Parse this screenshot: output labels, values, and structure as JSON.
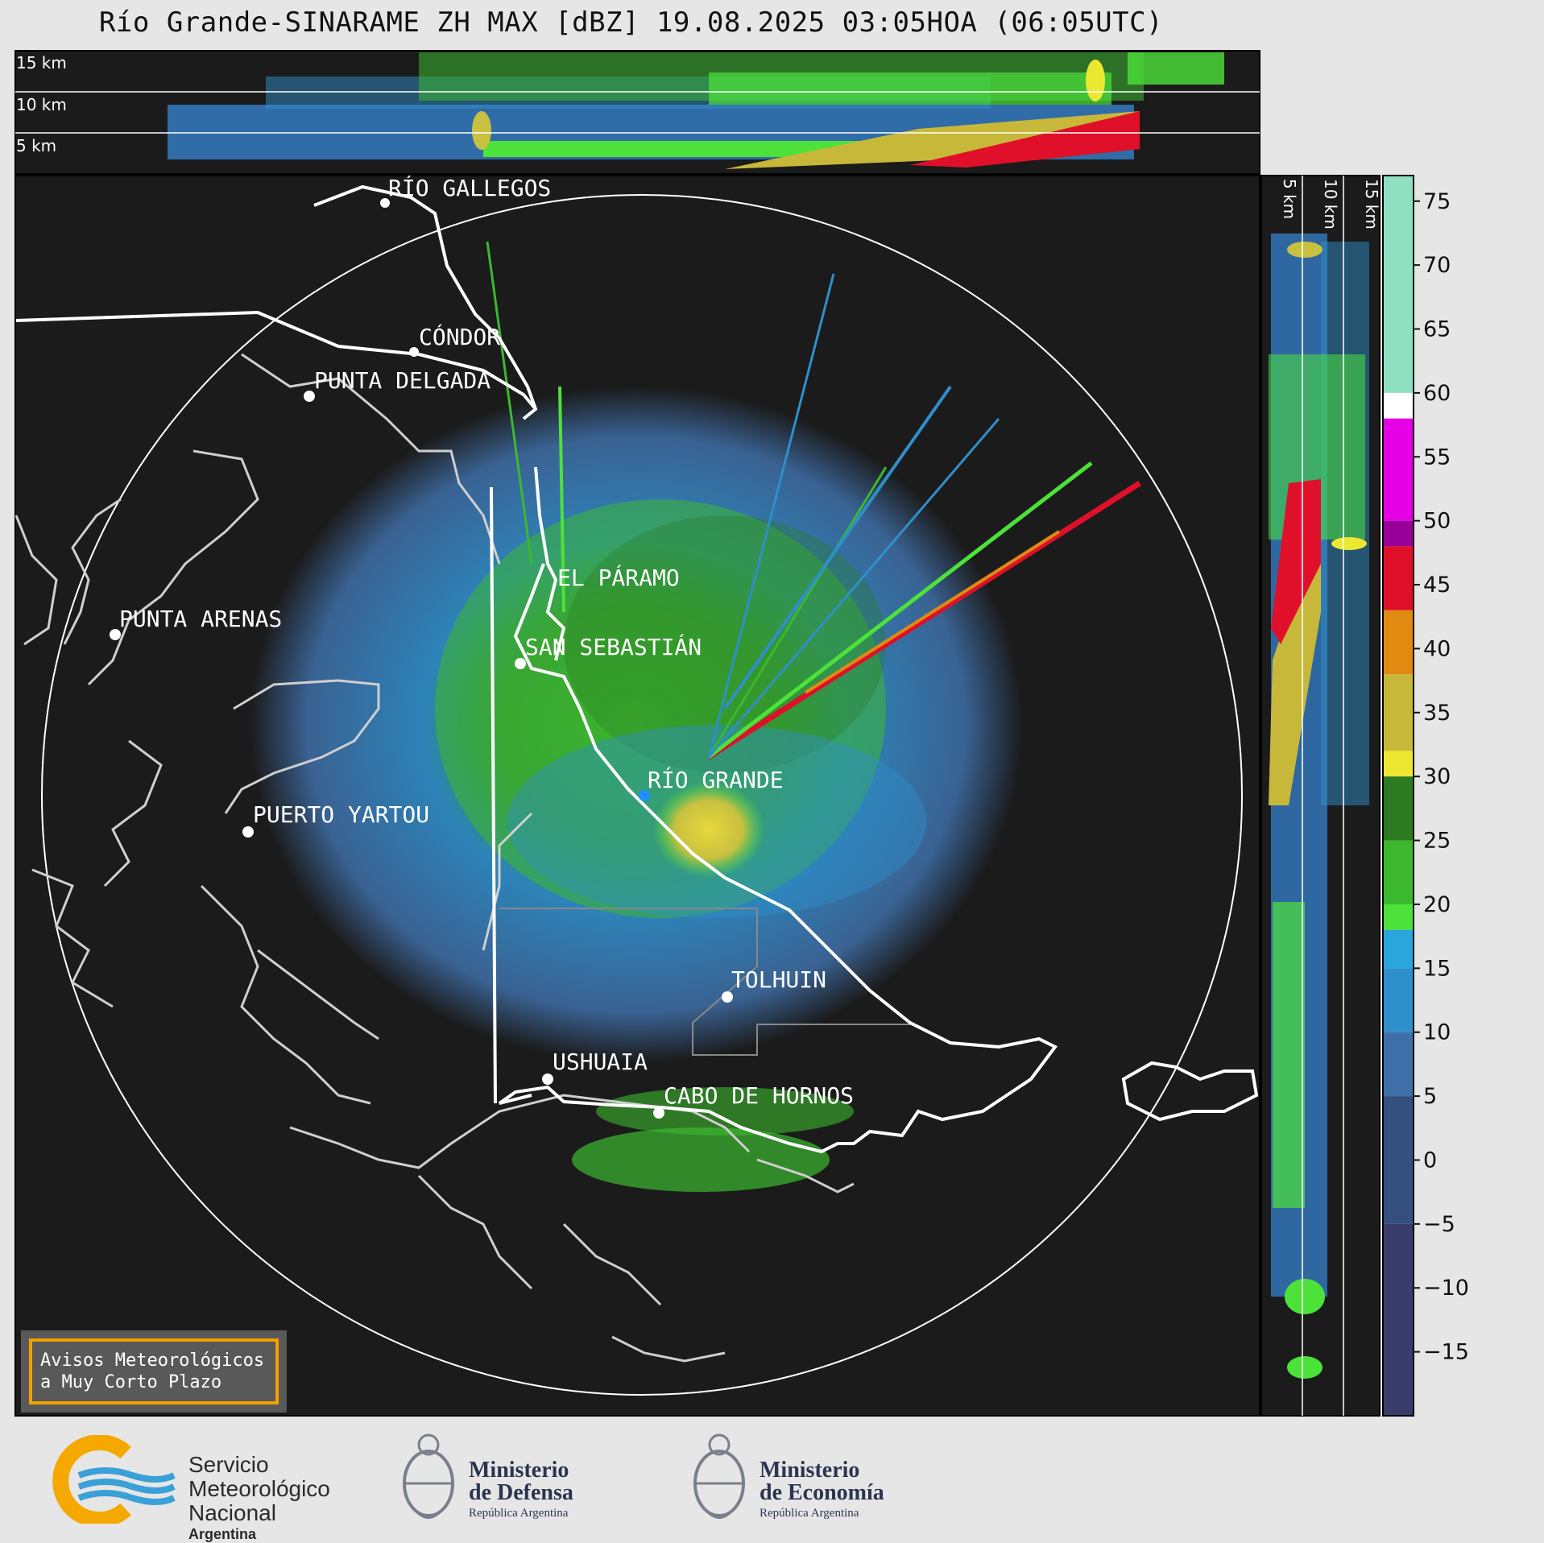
{
  "title": "Río Grande-SINARAME ZH MAX [dBZ] 19.08.2025 03:05HOA (06:05UTC)",
  "top_section_height_labels": [
    "15 km",
    "10 km",
    "5 km"
  ],
  "side_section_height_labels": [
    "5 km",
    "10 km",
    "15 km"
  ],
  "cities": [
    {
      "name": "RÍO GALLEGOS"
    },
    {
      "name": "CÓNDOR"
    },
    {
      "name": "PUNTA DELGADA"
    },
    {
      "name": "EL PÁRAMO"
    },
    {
      "name": "PUNTA ARENAS"
    },
    {
      "name": "SAN SEBASTIÁN"
    },
    {
      "name": "RÍO GRANDE"
    },
    {
      "name": "PUERTO YARTOU"
    },
    {
      "name": "TOLHUIN"
    },
    {
      "name": "USHUAIA"
    },
    {
      "name": "CABO DE HORNOS"
    }
  ],
  "colorbar": {
    "unit": "dBZ",
    "ticks": [
      "75",
      "70",
      "65",
      "60",
      "55",
      "50",
      "45",
      "40",
      "35",
      "30",
      "25",
      "20",
      "15",
      "10",
      "5",
      "0",
      "−5",
      "−10",
      "−15"
    ],
    "colors": {
      "low_dark": "#3a3c6b",
      "blue_dark": "#35507f",
      "blue": "#3f6fa8",
      "blue_light": "#2f8fca",
      "cyan": "#29a7dd",
      "green_light": "#4de23a",
      "green": "#3cb82f",
      "green_dark": "#2c7a22",
      "yellow": "#ece832",
      "olive": "#c8b83a",
      "orange": "#e08a12",
      "red": "#e0102a",
      "red_dark": "#a0000c",
      "magenta": "#e600e6",
      "purple": "#990099",
      "white": "#ffffff",
      "mint": "#8fe0c0"
    }
  },
  "aviso": {
    "line1": "Avisos Meteorológicos",
    "line2": "a Muy Corto Plazo"
  },
  "footer": {
    "smn": {
      "line1": "Servicio",
      "line2": "Meteorológico",
      "line3": "Nacional",
      "line4": "Argentina"
    },
    "defensa": {
      "line1": "Ministerio",
      "line2": "de Defensa",
      "line3": "República Argentina"
    },
    "economia": {
      "line1": "Ministerio",
      "line2": "de Economía",
      "line3": "República Argentina"
    }
  }
}
